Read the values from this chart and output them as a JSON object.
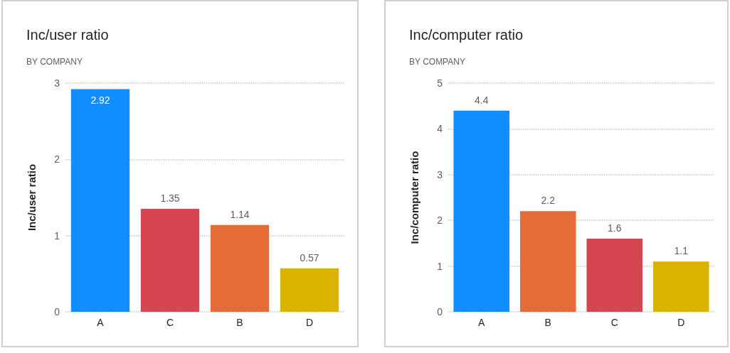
{
  "chart_data": [
    {
      "type": "bar",
      "title": "Inc/user ratio",
      "subtitle": "BY COMPANY",
      "ylabel": "Inc/user ratio",
      "categories": [
        "A",
        "C",
        "B",
        "D"
      ],
      "values": [
        2.92,
        1.35,
        1.14,
        0.57
      ],
      "colors": [
        "#118dff",
        "#d64550",
        "#e66c37",
        "#d9b300"
      ],
      "ylim": [
        0,
        3
      ],
      "yticks": [
        0,
        1,
        2,
        3
      ],
      "grid": "y",
      "data_labels": true
    },
    {
      "type": "bar",
      "title": "Inc/computer ratio",
      "subtitle": "BY COMPANY",
      "ylabel": "Inc/computer ratio",
      "categories": [
        "A",
        "B",
        "C",
        "D"
      ],
      "values": [
        4.4,
        2.2,
        1.6,
        1.1
      ],
      "colors": [
        "#118dff",
        "#e66c37",
        "#d64550",
        "#d9b300"
      ],
      "ylim": [
        0,
        5
      ],
      "yticks": [
        0,
        1,
        2,
        3,
        4,
        5
      ],
      "grid": "y",
      "data_labels": true
    }
  ]
}
